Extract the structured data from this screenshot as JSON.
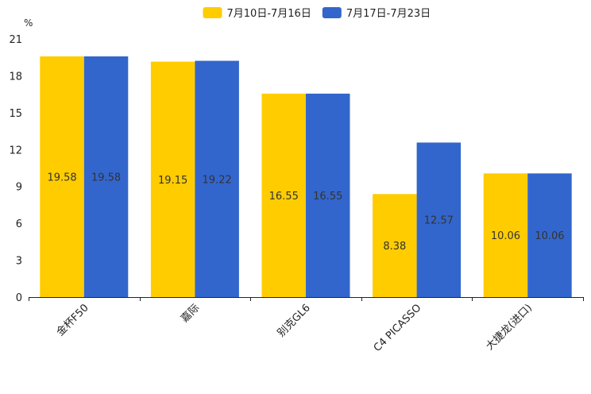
{
  "chart_data": {
    "type": "bar",
    "title": "",
    "xlabel": "",
    "ylabel": "%",
    "ylim": [
      0,
      21
    ],
    "yticks": [
      0,
      3,
      6,
      9,
      12,
      15,
      18,
      21
    ],
    "grid": false,
    "legend_position": "top-center",
    "categories": [
      "金杯F50",
      "嘉际",
      "别克GL6",
      "C4 PICASSO",
      "大捷龙(进口)"
    ],
    "series": [
      {
        "name": "7月10日-7月16日",
        "color": "#ffcc00",
        "values": [
          19.58,
          19.15,
          16.55,
          8.38,
          10.06
        ]
      },
      {
        "name": "7月17日-7月23日",
        "color": "#3366cc",
        "values": [
          19.58,
          19.22,
          16.55,
          12.57,
          10.06
        ]
      }
    ]
  }
}
